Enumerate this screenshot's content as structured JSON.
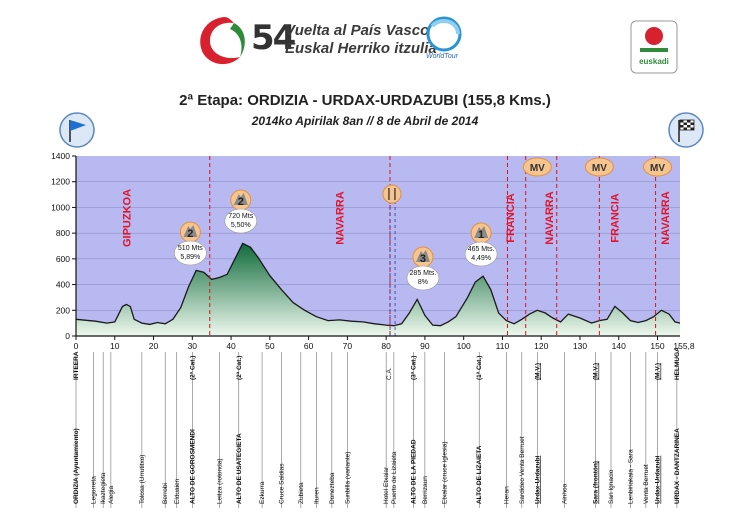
{
  "header": {
    "event_number": "54",
    "event_name_es": "Vuelta al País Vasco",
    "event_name_eu": "Euskal Herriko itzulia",
    "worldtour_label": "WorldTour",
    "sponsor_label": "euskadi",
    "colors": {
      "red": "#d8212f",
      "green": "#2e8b3a",
      "blue": "#2a93d5"
    },
    "icons": [
      "event-logo-swirl-icon",
      "worldtour-logo-icon",
      "sponsor-logo-icon",
      "start-flag-icon",
      "finish-flag-icon",
      "food-zone-icon",
      "mountain-icon",
      "sprint-marker-icon"
    ]
  },
  "title": "2ª Etapa: ORDIZIA - URDAX-URDAZUBI (155,8 Kms.)",
  "subtitle": "2014ko Apirilak 8an // 8 de Abril de 2014",
  "chart_data": {
    "type": "area",
    "colors": {
      "plot_bg": "#b9b9f2",
      "fill_top": "#0f6b3a",
      "fill_bottom": "#eef8ee",
      "line": "#1a1a1a",
      "border_lines": "#d4141c",
      "gridline": "#9090c8"
    },
    "xlim": [
      0,
      155.8
    ],
    "ylim": [
      0,
      1400
    ],
    "x_ticks": [
      0,
      10,
      20,
      30,
      40,
      50,
      60,
      70,
      80,
      90,
      100,
      110,
      120,
      130,
      140,
      150
    ],
    "x_end_label": "155,8",
    "y_ticks": [
      0,
      200,
      400,
      600,
      800,
      1000,
      1200,
      1400
    ],
    "grid": true,
    "profile": [
      [
        0,
        130
      ],
      [
        5,
        115
      ],
      [
        8,
        100
      ],
      [
        10,
        110
      ],
      [
        12,
        230
      ],
      [
        13,
        245
      ],
      [
        14,
        230
      ],
      [
        15,
        130
      ],
      [
        17,
        100
      ],
      [
        19,
        90
      ],
      [
        21,
        105
      ],
      [
        23,
        95
      ],
      [
        25,
        130
      ],
      [
        27,
        220
      ],
      [
        29,
        380
      ],
      [
        31,
        510
      ],
      [
        33,
        495
      ],
      [
        35,
        440
      ],
      [
        37,
        455
      ],
      [
        39,
        480
      ],
      [
        41,
        600
      ],
      [
        43,
        720
      ],
      [
        45,
        690
      ],
      [
        47,
        610
      ],
      [
        50,
        470
      ],
      [
        53,
        360
      ],
      [
        56,
        260
      ],
      [
        59,
        200
      ],
      [
        62,
        150
      ],
      [
        65,
        120
      ],
      [
        68,
        125
      ],
      [
        71,
        115
      ],
      [
        74,
        110
      ],
      [
        77,
        95
      ],
      [
        80,
        85
      ],
      [
        82,
        80
      ],
      [
        84,
        95
      ],
      [
        86,
        180
      ],
      [
        88,
        285
      ],
      [
        90,
        160
      ],
      [
        92,
        85
      ],
      [
        94,
        80
      ],
      [
        96,
        110
      ],
      [
        98,
        150
      ],
      [
        101,
        300
      ],
      [
        103,
        420
      ],
      [
        105,
        465
      ],
      [
        107,
        360
      ],
      [
        109,
        180
      ],
      [
        111,
        120
      ],
      [
        113,
        95
      ],
      [
        115,
        130
      ],
      [
        117,
        170
      ],
      [
        119,
        200
      ],
      [
        121,
        180
      ],
      [
        123,
        140
      ],
      [
        125,
        110
      ],
      [
        127,
        170
      ],
      [
        130,
        140
      ],
      [
        133,
        100
      ],
      [
        135,
        120
      ],
      [
        137,
        130
      ],
      [
        139,
        230
      ],
      [
        141,
        180
      ],
      [
        143,
        120
      ],
      [
        145,
        105
      ],
      [
        147,
        120
      ],
      [
        149,
        150
      ],
      [
        151,
        200
      ],
      [
        153,
        170
      ],
      [
        154.5,
        110
      ],
      [
        155.8,
        100
      ]
    ],
    "region_borders_km": [
      34.5,
      81.0,
      111.3,
      116.0,
      124.0,
      135.0,
      149.5
    ],
    "dashed_lines_km": [
      81.0,
      82.3
    ],
    "regions": [
      {
        "name": "GIPUZKOA",
        "km": 14
      },
      {
        "name": "NAVARRA",
        "km": 69
      },
      {
        "name": "FRANCIA",
        "km": 113
      },
      {
        "name": "NAVARRA",
        "km": 123
      },
      {
        "name": "FRANCIA",
        "km": 140
      },
      {
        "name": "NAVARRA",
        "km": 153
      }
    ],
    "climbs": [
      {
        "cat": "2",
        "km": 29.5,
        "alt": "510 Mts",
        "grade": "5,89%",
        "icon_y": 232,
        "label_y": 243
      },
      {
        "cat": "2",
        "km": 42.5,
        "alt": "720 Mts",
        "grade": "5,50%",
        "icon_y": 200,
        "label_y": 211
      },
      {
        "cat": "3",
        "km": 89.5,
        "alt": "285 Mts.",
        "grade": "8%",
        "icon_y": 257,
        "label_y": 268
      },
      {
        "cat": "1",
        "km": 104.5,
        "alt": "465 Mts.",
        "grade": "4,49%",
        "icon_y": 233,
        "label_y": 244
      }
    ],
    "sprints": [
      {
        "label": "MV",
        "km": 119
      },
      {
        "label": "MV",
        "km": 135
      },
      {
        "label": "MV",
        "km": 150
      }
    ],
    "food_zone_km": 81.5,
    "waypoints": [
      {
        "km": 0,
        "label": "ORDIZIA (Ayuntamiento)",
        "type": "start"
      },
      {
        "km": 4.5,
        "label": "Legorreta",
        "type": "place"
      },
      {
        "km": 7,
        "label": "Ikaztegieta",
        "type": "place"
      },
      {
        "km": 9,
        "label": "Alegia",
        "type": "place"
      },
      {
        "km": 17,
        "label": "Tolosa (Urrutitxo)",
        "type": "place"
      },
      {
        "km": 23,
        "label": "Berrobi",
        "type": "place"
      },
      {
        "km": 26,
        "label": "Elduaien",
        "type": "place"
      },
      {
        "km": 30,
        "label": "ALTO DE GOROSMENDI",
        "type": "climb"
      },
      {
        "km": 37,
        "label": "Leitza (rotonda)",
        "type": "place"
      },
      {
        "km": 42,
        "label": "ALTO DE USATEGIETA",
        "type": "climb"
      },
      {
        "km": 48,
        "label": "Ezkurra",
        "type": "place"
      },
      {
        "km": 53,
        "label": "Cruce Saldias",
        "type": "place"
      },
      {
        "km": 58,
        "label": "Zubieta",
        "type": "place"
      },
      {
        "km": 62,
        "label": "Ituren",
        "type": "place"
      },
      {
        "km": 66,
        "label": "Donezteba",
        "type": "place"
      },
      {
        "km": 70,
        "label": "Sunbilla (variante)",
        "type": "place"
      },
      {
        "km": 80,
        "label": "Hotel Etxalar",
        "type": "place"
      },
      {
        "km": 82,
        "label": "Puerto de Lizaieta",
        "type": "place"
      },
      {
        "km": 87,
        "label": "ALTO DE LA PIEDAD",
        "type": "climb"
      },
      {
        "km": 90,
        "label": "Berrizaun",
        "type": "place"
      },
      {
        "km": 95,
        "label": "Etxalar (cruce iglesia)",
        "type": "place"
      },
      {
        "km": 104,
        "label": "ALTO DE LIZAIETA",
        "type": "climb"
      },
      {
        "km": 111,
        "label": "Heran",
        "type": "place"
      },
      {
        "km": 115,
        "label": "Sardideo Venta Berruet",
        "type": "place"
      },
      {
        "km": 119,
        "label": "Urdax-Urdazubi",
        "type": "sprint"
      },
      {
        "km": 126,
        "label": "Ainhoa",
        "type": "place"
      },
      {
        "km": 134,
        "label": "Sara (frontón)",
        "type": "sprint"
      },
      {
        "km": 138,
        "label": "San Ignacio",
        "type": "place"
      },
      {
        "km": 143,
        "label": "Lenbiriakaia - Sara",
        "type": "place"
      },
      {
        "km": 147,
        "label": "Venta Berruet",
        "type": "place"
      },
      {
        "km": 150,
        "label": "Urdax-Urdazubi",
        "type": "sprint"
      },
      {
        "km": 155,
        "label": "URDAX - DANTZARINEA",
        "type": "finish"
      }
    ],
    "upper_labels": [
      {
        "km": 0,
        "label": "IRTEERA",
        "type": "start"
      },
      {
        "km": 30,
        "label": "(2ª Cat.)",
        "type": "climb"
      },
      {
        "km": 42,
        "label": "(2ª Cat.)",
        "type": "climb"
      },
      {
        "km": 80.8,
        "label": "C.A.",
        "type": "place"
      },
      {
        "km": 87,
        "label": "(3ª Cat.)",
        "type": "climb"
      },
      {
        "km": 104,
        "label": "(1ª Cat.)",
        "type": "climb"
      },
      {
        "km": 119,
        "label": "(M.V.)",
        "type": "sprint"
      },
      {
        "km": 134,
        "label": "(M.V.)",
        "type": "sprint"
      },
      {
        "km": 150,
        "label": "(M.V.)",
        "type": "sprint"
      },
      {
        "km": 155,
        "label": "HELMUGA",
        "type": "finish"
      }
    ]
  }
}
